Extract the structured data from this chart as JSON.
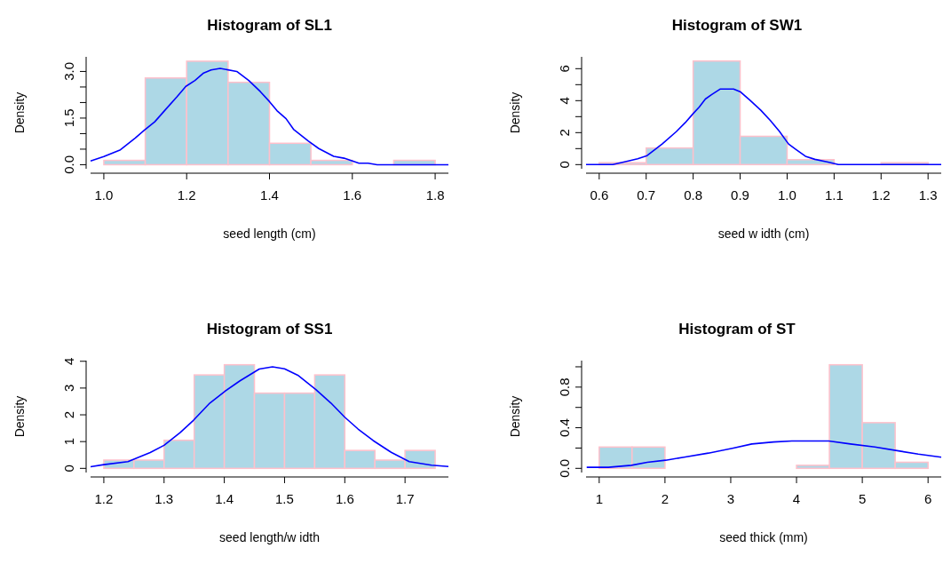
{
  "chart_data": [
    {
      "type": "histogram",
      "title": "Histogram of SL1",
      "xlabel": "seed length (cm)",
      "ylabel": "Density",
      "color": "#add8e6",
      "bins": [
        1.0,
        1.1,
        1.2,
        1.3,
        1.4,
        1.5,
        1.6,
        1.7,
        1.8
      ],
      "values": [
        0.14,
        2.79,
        3.33,
        2.65,
        0.69,
        0.14,
        0,
        0.14
      ],
      "xlim": [
        0.968,
        1.832
      ],
      "ylim": [
        -0.13,
        3.47
      ],
      "xticks": [
        {
          "value": 1.0,
          "label": "1.0"
        },
        {
          "value": 1.2,
          "label": "1.2"
        },
        {
          "value": 1.4,
          "label": "1.4"
        },
        {
          "value": 1.6,
          "label": "1.6"
        },
        {
          "value": 1.8,
          "label": "1.8"
        }
      ],
      "yticks": [
        {
          "value": 0,
          "label": "0.0"
        },
        {
          "value": 0.5,
          "label": null
        },
        {
          "value": 1,
          "label": null
        },
        {
          "value": 1.5,
          "label": "1.5"
        },
        {
          "value": 2,
          "label": null
        },
        {
          "value": 2.5,
          "label": null
        },
        {
          "value": 3,
          "label": "3.0"
        }
      ],
      "series": [
        {
          "type": "line",
          "color": "#0000ff",
          "x": [
            0.968,
            1.0,
            1.04,
            1.076,
            1.097,
            1.123,
            1.148,
            1.177,
            1.198,
            1.22,
            1.241,
            1.259,
            1.281,
            1.321,
            1.35,
            1.378,
            1.4,
            1.418,
            1.44,
            1.458,
            1.494,
            1.519,
            1.555,
            1.58,
            1.616,
            1.638,
            1.66,
            1.832
          ],
          "values": [
            0.12,
            0.26,
            0.48,
            0.86,
            1.1,
            1.38,
            1.76,
            2.19,
            2.52,
            2.71,
            2.95,
            3.05,
            3.1,
            3.0,
            2.71,
            2.35,
            2.03,
            1.74,
            1.48,
            1.14,
            0.76,
            0.52,
            0.27,
            0.21,
            0.05,
            0.05,
            0,
            0
          ]
        }
      ]
    },
    {
      "type": "histogram",
      "title": "Histogram of SW1",
      "xlabel": "seed w idth (cm)",
      "ylabel": "Density",
      "color": "#add8e6",
      "bins": [
        0.6,
        0.7,
        0.8,
        0.9,
        1.0,
        1.1,
        1.2,
        1.3
      ],
      "values": [
        0.12,
        1.04,
        6.48,
        1.77,
        0.31,
        0,
        0.12
      ],
      "xlim": [
        0.572,
        1.328
      ],
      "ylim": [
        -0.26,
        6.74
      ],
      "xticks": [
        {
          "value": 0.6,
          "label": "0.6"
        },
        {
          "value": 0.7,
          "label": "0.7"
        },
        {
          "value": 0.8,
          "label": "0.8"
        },
        {
          "value": 0.9,
          "label": "0.9"
        },
        {
          "value": 1.0,
          "label": "1.0"
        },
        {
          "value": 1.1,
          "label": "1.1"
        },
        {
          "value": 1.2,
          "label": "1.2"
        },
        {
          "value": 1.3,
          "label": "1.3"
        }
      ],
      "yticks": [
        0,
        {
          "value": 1,
          "label": null
        },
        2,
        {
          "value": 3,
          "label": null
        },
        4,
        {
          "value": 5,
          "label": null
        },
        6
      ],
      "series": [
        {
          "type": "line",
          "color": "#0000ff",
          "x": [
            0.572,
            0.629,
            0.662,
            0.682,
            0.702,
            0.734,
            0.764,
            0.783,
            0.8,
            0.813,
            0.826,
            0.839,
            0.858,
            0.886,
            0.901,
            0.921,
            0.944,
            0.964,
            0.983,
            1.003,
            1.019,
            1.039,
            1.059,
            1.085,
            1.109,
            1.328
          ],
          "values": [
            0,
            0,
            0.23,
            0.37,
            0.56,
            1.29,
            2.06,
            2.62,
            3.19,
            3.6,
            4.1,
            4.37,
            4.73,
            4.73,
            4.54,
            4.02,
            3.4,
            2.77,
            2.1,
            1.29,
            0.94,
            0.52,
            0.33,
            0.17,
            0,
            0
          ]
        }
      ]
    },
    {
      "type": "histogram",
      "title": "Histogram of SS1",
      "xlabel": "seed length/w idth",
      "ylabel": "Density",
      "color": "#add8e6",
      "bins": [
        1.2,
        1.25,
        1.3,
        1.35,
        1.4,
        1.45,
        1.5,
        1.55,
        1.6,
        1.65,
        1.7,
        1.75
      ],
      "values": [
        0.31,
        0.31,
        1.05,
        3.49,
        3.87,
        2.81,
        2.81,
        3.49,
        0.67,
        0.31,
        0.67
      ],
      "xlim": [
        1.178,
        1.772
      ],
      "ylim": [
        -0.155,
        4.025
      ],
      "xticks": [
        1.2,
        1.3,
        1.4,
        1.5,
        1.6,
        1.7
      ],
      "yticks": [
        0,
        1,
        2,
        3,
        4
      ],
      "series": [
        {
          "type": "line",
          "color": "#0000ff",
          "x": [
            1.178,
            1.2,
            1.24,
            1.277,
            1.3,
            1.327,
            1.349,
            1.376,
            1.401,
            1.426,
            1.458,
            1.48,
            1.5,
            1.522,
            1.552,
            1.577,
            1.6,
            1.622,
            1.647,
            1.677,
            1.707,
            1.744,
            1.772
          ],
          "values": [
            0.06,
            0.14,
            0.25,
            0.59,
            0.86,
            1.34,
            1.8,
            2.44,
            2.88,
            3.27,
            3.71,
            3.79,
            3.72,
            3.48,
            2.94,
            2.44,
            1.91,
            1.47,
            1.04,
            0.6,
            0.25,
            0.12,
            0.07
          ]
        }
      ]
    },
    {
      "type": "histogram",
      "title": "Histogram of ST",
      "xlabel": "seed thick (mm)",
      "ylabel": "Density",
      "color": "#add8e6",
      "bins": [
        1,
        1.5,
        2,
        2.5,
        3,
        3.5,
        4,
        4.5,
        5,
        5.5,
        6
      ],
      "values": [
        0.21,
        0.21,
        0,
        0,
        0,
        0,
        0.03,
        1.02,
        0.45,
        0.06
      ],
      "xlim": [
        0.8,
        6.2
      ],
      "ylim": [
        -0.041,
        1.061
      ],
      "xticks": [
        1,
        2,
        3,
        4,
        5,
        6
      ],
      "yticks": [
        {
          "value": 0,
          "label": "0.0"
        },
        {
          "value": 0.2,
          "label": null
        },
        {
          "value": 0.4,
          "label": "0.4"
        },
        {
          "value": 0.6,
          "label": null
        },
        {
          "value": 0.8,
          "label": "0.8"
        },
        {
          "value": 1.0,
          "label": null
        }
      ],
      "series": [
        {
          "type": "line",
          "color": "#0000ff",
          "x": [
            0.81,
            1.14,
            1.49,
            1.73,
            2.01,
            2.29,
            2.66,
            3.04,
            3.32,
            3.65,
            3.93,
            4.49,
            4.82,
            5.19,
            5.57,
            5.85,
            6.2
          ],
          "values": [
            0.01,
            0.01,
            0.03,
            0.06,
            0.08,
            0.11,
            0.15,
            0.2,
            0.24,
            0.26,
            0.27,
            0.27,
            0.24,
            0.21,
            0.17,
            0.14,
            0.11
          ]
        }
      ]
    }
  ]
}
